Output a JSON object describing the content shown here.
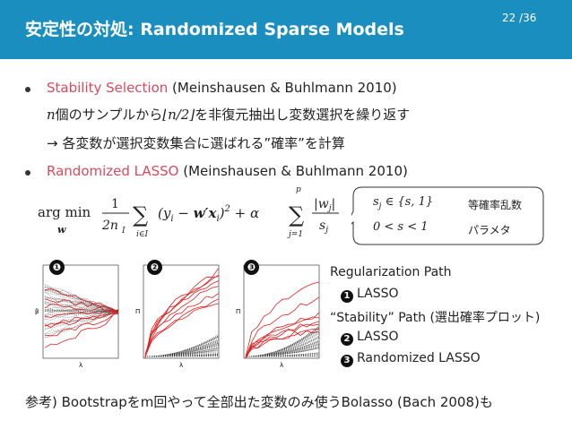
{
  "header": {
    "title": "安定性の対処: Randomized Sparse Models",
    "page": "22 /36"
  },
  "bullets": [
    {
      "highlight": "Stability Selection",
      "rest": " (Meinshausen & Buhlmann 2010)"
    },
    {
      "highlight": "Randomized LASSO",
      "rest": " (Meinshausen & Buhlmann 2010)"
    }
  ],
  "stability": {
    "n": "n",
    "line1": "個のサンプルから",
    "floor": "⌊n/2⌋",
    "line1b": "を非復元抽出し変数選択を繰り返す",
    "line2": "→ 各変数が選択変数集合に選ばれる”確率”を計算"
  },
  "formula": {
    "argmin": "arg min",
    "w": "w",
    "frac1_num": "1",
    "frac1_den": "2n",
    "frac1_sub": "I",
    "sum1_sub": "i∈I",
    "body": "(y",
    "body_i": "i",
    "minus": " − ",
    "wx": "w′x",
    "wx_i": "i",
    "sq": ")",
    "sq_pow": "2",
    "plus": " + α",
    "sum2_top": "p",
    "sum2_sub": "j=1",
    "frac2_num": "|w",
    "frac2_num_j": "j",
    "frac2_num_end": "|",
    "frac2_den": "s",
    "frac2_den_j": "j"
  },
  "callout": {
    "row1_math": "s",
    "row1_sub": "j",
    "row1_rest": " ∈ {s, 1}",
    "row1_label": "等確率乱数",
    "row2_math": "0 < s < 1",
    "row2_label": "パラメタ"
  },
  "plots": {
    "markers": [
      "❶",
      "❷",
      "❸"
    ],
    "axis_labels": {
      "lambda": "λ",
      "beta": "β",
      "pi": "Π"
    }
  },
  "legend": {
    "title1": "Regularization Path",
    "item1": "LASSO",
    "title2": "“Stability” Path (選出確率プロット)",
    "item2": "LASSO",
    "item3": "Randomized LASSO",
    "m1": "1",
    "m2": "2",
    "m3": "3"
  },
  "footnote": "参考) Bootstrapをm回やって全部出た変数のみ使うBolasso (Bach 2008)も",
  "colors": {
    "header": "#1a8fbf",
    "accent": "#d94a5e",
    "path_red": "#e02020"
  }
}
